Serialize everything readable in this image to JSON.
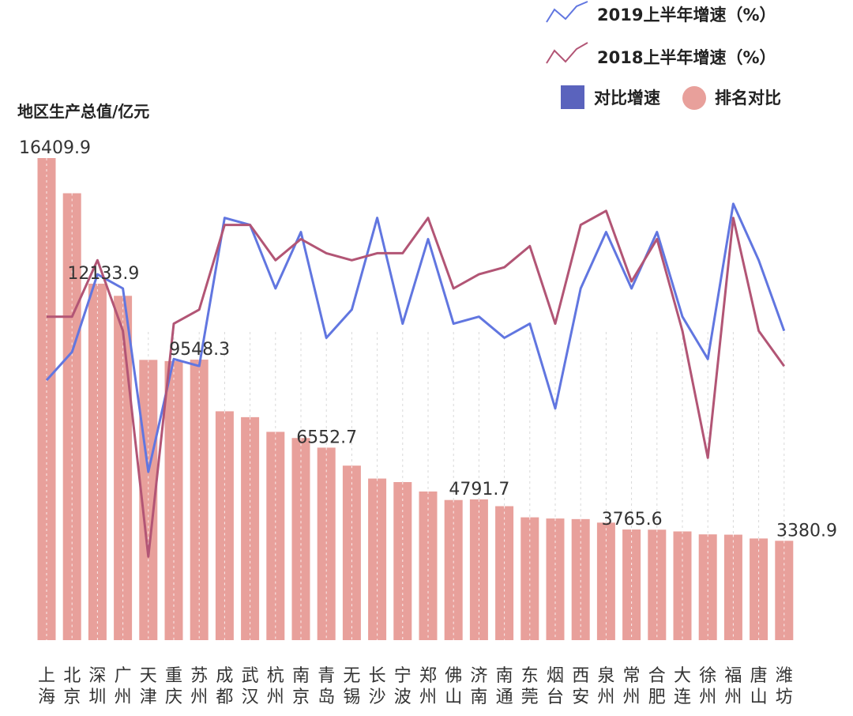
{
  "colors": {
    "bar": "#e8a09b",
    "bar_line": "#ffffff",
    "series_2019": "#6176e0",
    "series_2018": "#b25575",
    "legend_square": "#5a63bd",
    "legend_circle": "#e8a09b"
  },
  "legend": {
    "line_2019": "2019上半年增速（%）",
    "line_2018": "2018上半年增速（%）",
    "square_label": "对比增速",
    "circle_label": "排名对比"
  },
  "chart_data": {
    "type": "bar",
    "ylabel": "地区生产总值/亿元",
    "categories": [
      [
        "上",
        "海"
      ],
      [
        "北",
        "京"
      ],
      [
        "深",
        "圳"
      ],
      [
        "广",
        "州"
      ],
      [
        "天",
        "津"
      ],
      [
        "重",
        "庆"
      ],
      [
        "苏",
        "州"
      ],
      [
        "成",
        "都"
      ],
      [
        "武",
        "汉"
      ],
      [
        "杭",
        "州"
      ],
      [
        "南",
        "京"
      ],
      [
        "青",
        "岛"
      ],
      [
        "无",
        "锡"
      ],
      [
        "长",
        "沙"
      ],
      [
        "宁",
        "波"
      ],
      [
        "郑",
        "州"
      ],
      [
        "佛",
        "山"
      ],
      [
        "济",
        "南"
      ],
      [
        "南",
        "通"
      ],
      [
        "东",
        "莞"
      ],
      [
        "烟",
        "台"
      ],
      [
        "西",
        "安"
      ],
      [
        "泉",
        "州"
      ],
      [
        "常",
        "州"
      ],
      [
        "合",
        "肥"
      ],
      [
        "大",
        "连"
      ],
      [
        "徐",
        "州"
      ],
      [
        "福",
        "州"
      ],
      [
        "唐",
        "山"
      ],
      [
        "潍",
        "坊"
      ]
    ],
    "values": [
      16409.9,
      15212,
      12133.9,
      11720,
      9540,
      9500,
      9548.3,
      7790,
      7590,
      7090,
      6880,
      6552.7,
      5940,
      5500,
      5380,
      5060,
      4770,
      4791.7,
      4560,
      4180,
      4140,
      4120,
      4000,
      3765.6,
      3760,
      3700,
      3600,
      3590,
      3460,
      3380.9
    ],
    "data_labels": [
      {
        "index": 0,
        "text": "16409.9"
      },
      {
        "index": 2,
        "text": "12133.9"
      },
      {
        "index": 6,
        "text": "9548.3"
      },
      {
        "index": 11,
        "text": "6552.7"
      },
      {
        "index": 17,
        "text": "4791.7"
      },
      {
        "index": 23,
        "text": "3765.6"
      },
      {
        "index": 29,
        "text": "3380.9"
      }
    ],
    "ylim": [
      0,
      16409.9
    ],
    "grid": "vertical dashed",
    "series": [
      {
        "name": "2019上半年增速（%）",
        "color": "#6176e0",
        "values": [
          5.9,
          6.3,
          7.4,
          7.2,
          4.6,
          6.2,
          6.1,
          8.2,
          8.1,
          7.2,
          8.0,
          6.5,
          6.9,
          8.2,
          6.7,
          7.9,
          6.7,
          6.8,
          6.5,
          6.7,
          5.5,
          7.2,
          8.0,
          7.2,
          8.0,
          6.8,
          6.2,
          8.4,
          7.6,
          6.6
        ]
      },
      {
        "name": "2018上半年增速（%）",
        "color": "#b25575",
        "values": [
          6.8,
          6.8,
          7.6,
          6.6,
          3.4,
          6.7,
          6.9,
          8.1,
          8.1,
          7.6,
          7.9,
          7.7,
          7.6,
          7.7,
          7.7,
          8.2,
          7.2,
          7.4,
          7.5,
          7.8,
          6.7,
          8.1,
          8.3,
          7.3,
          7.9,
          6.6,
          4.8,
          8.2,
          6.6,
          6.1
        ]
      }
    ]
  }
}
